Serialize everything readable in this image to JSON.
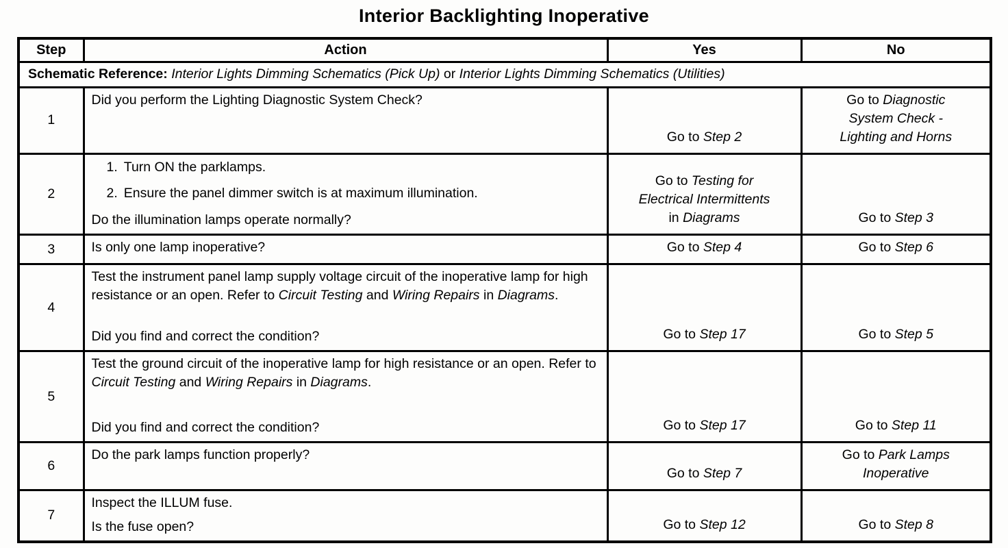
{
  "title": "Interior Backlighting Inoperative",
  "table": {
    "headers": [
      "Step",
      "Action",
      "Yes",
      "No"
    ],
    "schematic_segments": [
      {
        "t": "Schematic Reference: ",
        "b": true
      },
      {
        "t": "Interior Lights Dimming Schematics (Pick Up)",
        "i": true
      },
      {
        "t": " or "
      },
      {
        "t": "Interior Lights Dimming Schematics (Utilities)",
        "i": true
      }
    ],
    "rows": [
      {
        "step": "1",
        "action": [
          {
            "kind": "para",
            "segments": [
              {
                "t": "Did you perform the Lighting Diagnostic System Check?"
              }
            ]
          }
        ],
        "yes": [
          {
            "t": "Go to "
          },
          {
            "t": "Step 2",
            "i": true
          }
        ],
        "no": [
          {
            "t": "Go to "
          },
          {
            "t": "Diagnostic System Check - Lighting and Horns",
            "i": true
          }
        ]
      },
      {
        "step": "2",
        "action": [
          {
            "kind": "list",
            "items": [
              [
                {
                  "t": "Turn ON the parklamps."
                }
              ],
              [
                {
                  "t": "Ensure the panel dimmer switch is at maximum illumination."
                }
              ]
            ]
          },
          {
            "kind": "para",
            "segments": [
              {
                "t": "Do the illumination lamps operate normally?"
              }
            ]
          }
        ],
        "yes": [
          {
            "t": "Go to "
          },
          {
            "t": "Testing for Electrical Intermittents",
            "i": true
          },
          {
            "t": " in "
          },
          {
            "t": "Diagrams",
            "i": true
          }
        ],
        "no": [
          {
            "t": "Go to "
          },
          {
            "t": "Step 3",
            "i": true
          }
        ]
      },
      {
        "step": "3",
        "action": [
          {
            "kind": "para",
            "segments": [
              {
                "t": "Is only one lamp inoperative?"
              }
            ]
          }
        ],
        "yes": [
          {
            "t": "Go to "
          },
          {
            "t": "Step 4",
            "i": true
          }
        ],
        "no": [
          {
            "t": "Go to "
          },
          {
            "t": "Step 6",
            "i": true
          }
        ]
      },
      {
        "step": "4",
        "action": [
          {
            "kind": "para",
            "segments": [
              {
                "t": "Test the instrument panel lamp supply voltage circuit of the inoperative lamp for high resistance or an open. Refer to "
              },
              {
                "t": "Circuit Testing",
                "i": true
              },
              {
                "t": " and "
              },
              {
                "t": "Wiring Repairs",
                "i": true
              },
              {
                "t": " in "
              },
              {
                "t": "Diagrams",
                "i": true
              },
              {
                "t": "."
              }
            ]
          },
          {
            "kind": "para",
            "segments": [
              {
                "t": "Did you find and correct the condition?"
              }
            ]
          }
        ],
        "yes": [
          {
            "t": "Go to "
          },
          {
            "t": "Step 17",
            "i": true
          }
        ],
        "no": [
          {
            "t": "Go to "
          },
          {
            "t": "Step 5",
            "i": true
          }
        ]
      },
      {
        "step": "5",
        "action": [
          {
            "kind": "para",
            "segments": [
              {
                "t": "Test the ground circuit of the inoperative lamp for high resistance or an open. Refer to "
              },
              {
                "t": "Circuit Testing",
                "i": true
              },
              {
                "t": " and "
              },
              {
                "t": "Wiring Repairs",
                "i": true
              },
              {
                "t": " in "
              },
              {
                "t": "Diagrams",
                "i": true
              },
              {
                "t": "."
              }
            ]
          },
          {
            "kind": "para",
            "segments": [
              {
                "t": "Did you find and correct the condition?"
              }
            ]
          }
        ],
        "yes": [
          {
            "t": "Go to "
          },
          {
            "t": "Step 17",
            "i": true
          }
        ],
        "no": [
          {
            "t": "Go to "
          },
          {
            "t": "Step 11",
            "i": true
          }
        ]
      },
      {
        "step": "6",
        "action": [
          {
            "kind": "para",
            "segments": [
              {
                "t": "Do the park lamps function properly?"
              }
            ]
          }
        ],
        "yes": [
          {
            "t": "Go to "
          },
          {
            "t": "Step 7",
            "i": true
          }
        ],
        "no": [
          {
            "t": "Go to "
          },
          {
            "t": "Park Lamps Inoperative",
            "i": true
          }
        ]
      },
      {
        "step": "7",
        "action": [
          {
            "kind": "para",
            "segments": [
              {
                "t": "Inspect the ILLUM fuse."
              }
            ]
          },
          {
            "kind": "para",
            "segments": [
              {
                "t": "Is the fuse open?"
              }
            ]
          }
        ],
        "yes": [
          {
            "t": "Go to "
          },
          {
            "t": "Step 12",
            "i": true
          }
        ],
        "no": [
          {
            "t": "Go to "
          },
          {
            "t": "Step 8",
            "i": true
          }
        ]
      }
    ]
  }
}
